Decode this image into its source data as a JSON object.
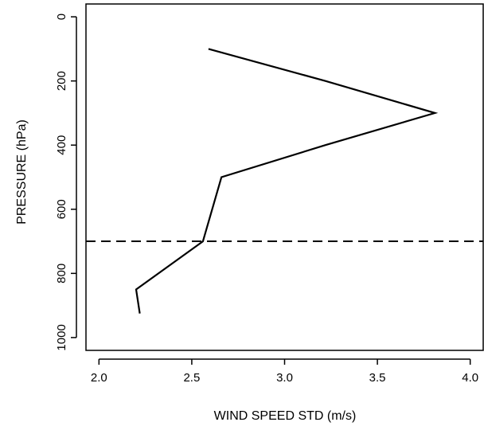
{
  "chart_data": {
    "type": "line",
    "title": "",
    "xlabel": "WIND SPEED STD (m/s)",
    "ylabel": "PRESSURE (hPa)",
    "xlim": [
      1.93,
      4.07
    ],
    "ylim": [
      1040,
      -40
    ],
    "y_inverted": true,
    "x_ticks": [
      "2.0",
      "2.5",
      "3.0",
      "3.5",
      "4.0"
    ],
    "y_ticks": [
      "0",
      "200",
      "400",
      "600",
      "800",
      "1000"
    ],
    "grid": false,
    "legend": "none",
    "series": [
      {
        "points": [
          {
            "x": 2.59,
            "y": 100
          },
          {
            "x": 3.22,
            "y": 200
          },
          {
            "x": 3.81,
            "y": 300
          },
          {
            "x": 3.22,
            "y": 400
          },
          {
            "x": 2.66,
            "y": 500
          },
          {
            "x": 2.56,
            "y": 700
          },
          {
            "x": 2.2,
            "y": 850
          },
          {
            "x": 2.22,
            "y": 925
          }
        ],
        "color": "#000000",
        "style": "solid"
      }
    ],
    "reference_lines": [
      {
        "orientation": "horizontal",
        "y": 700,
        "style": "dashed",
        "color": "#000000"
      }
    ]
  }
}
